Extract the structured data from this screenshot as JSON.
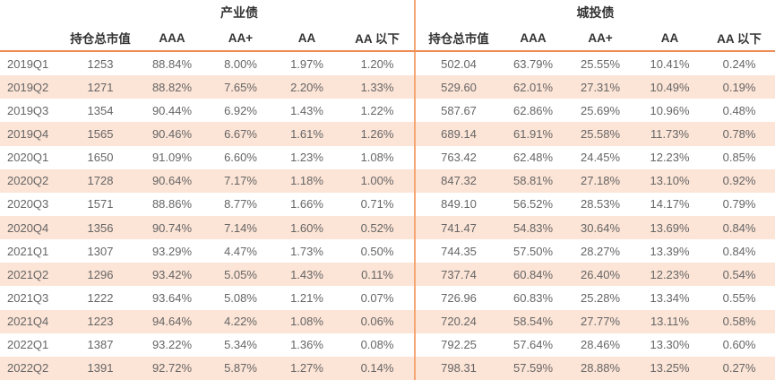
{
  "chart_data": {
    "type": "table",
    "sections": [
      {
        "title": "产业债",
        "columns": [
          "持仓总市值",
          "AAA",
          "AA+",
          "AA",
          "AA 以下"
        ]
      },
      {
        "title": "城投债",
        "columns": [
          "持仓总市值",
          "AAA",
          "AA+",
          "AA",
          "AA 以下"
        ]
      }
    ],
    "rows": [
      {
        "period": "2019Q1",
        "industrial": [
          "1253",
          "88.84%",
          "8.00%",
          "1.97%",
          "1.20%"
        ],
        "urban": [
          "502.04",
          "63.79%",
          "25.55%",
          "10.41%",
          "0.24%"
        ]
      },
      {
        "period": "2019Q2",
        "industrial": [
          "1271",
          "88.82%",
          "7.65%",
          "2.20%",
          "1.33%"
        ],
        "urban": [
          "529.60",
          "62.01%",
          "27.31%",
          "10.49%",
          "0.19%"
        ]
      },
      {
        "period": "2019Q3",
        "industrial": [
          "1354",
          "90.44%",
          "6.92%",
          "1.43%",
          "1.22%"
        ],
        "urban": [
          "587.67",
          "62.86%",
          "25.69%",
          "10.96%",
          "0.48%"
        ]
      },
      {
        "period": "2019Q4",
        "industrial": [
          "1565",
          "90.46%",
          "6.67%",
          "1.61%",
          "1.26%"
        ],
        "urban": [
          "689.14",
          "61.91%",
          "25.58%",
          "11.73%",
          "0.78%"
        ]
      },
      {
        "period": "2020Q1",
        "industrial": [
          "1650",
          "91.09%",
          "6.60%",
          "1.23%",
          "1.08%"
        ],
        "urban": [
          "763.42",
          "62.48%",
          "24.45%",
          "12.23%",
          "0.85%"
        ]
      },
      {
        "period": "2020Q2",
        "industrial": [
          "1728",
          "90.64%",
          "7.17%",
          "1.18%",
          "1.00%"
        ],
        "urban": [
          "847.32",
          "58.81%",
          "27.18%",
          "13.10%",
          "0.92%"
        ]
      },
      {
        "period": "2020Q3",
        "industrial": [
          "1571",
          "88.86%",
          "8.77%",
          "1.66%",
          "0.71%"
        ],
        "urban": [
          "849.10",
          "56.52%",
          "28.53%",
          "14.17%",
          "0.79%"
        ]
      },
      {
        "period": "2020Q4",
        "industrial": [
          "1356",
          "90.74%",
          "7.14%",
          "1.60%",
          "0.52%"
        ],
        "urban": [
          "741.47",
          "54.83%",
          "30.64%",
          "13.69%",
          "0.84%"
        ]
      },
      {
        "period": "2021Q1",
        "industrial": [
          "1307",
          "93.29%",
          "4.47%",
          "1.73%",
          "0.50%"
        ],
        "urban": [
          "744.35",
          "57.50%",
          "28.27%",
          "13.39%",
          "0.84%"
        ]
      },
      {
        "period": "2021Q2",
        "industrial": [
          "1296",
          "93.42%",
          "5.05%",
          "1.43%",
          "0.11%"
        ],
        "urban": [
          "737.74",
          "60.84%",
          "26.40%",
          "12.23%",
          "0.54%"
        ]
      },
      {
        "period": "2021Q3",
        "industrial": [
          "1222",
          "93.64%",
          "5.08%",
          "1.21%",
          "0.07%"
        ],
        "urban": [
          "726.96",
          "60.83%",
          "25.28%",
          "13.34%",
          "0.55%"
        ]
      },
      {
        "period": "2021Q4",
        "industrial": [
          "1223",
          "94.64%",
          "4.22%",
          "1.08%",
          "0.06%"
        ],
        "urban": [
          "720.24",
          "58.54%",
          "27.77%",
          "13.11%",
          "0.58%"
        ]
      },
      {
        "period": "2022Q1",
        "industrial": [
          "1387",
          "93.22%",
          "5.34%",
          "1.36%",
          "0.08%"
        ],
        "urban": [
          "792.25",
          "57.64%",
          "28.46%",
          "13.30%",
          "0.60%"
        ]
      },
      {
        "period": "2022Q2",
        "industrial": [
          "1391",
          "92.72%",
          "5.87%",
          "1.27%",
          "0.14%"
        ],
        "urban": [
          "798.31",
          "57.59%",
          "28.88%",
          "13.25%",
          "0.27%"
        ]
      }
    ]
  },
  "colors": {
    "header_rule": "#ED8C55",
    "section_divider": "#F4A675",
    "row_alt_bg": "#FCE4D6",
    "header_text": "#333333",
    "body_text": "#666666"
  }
}
